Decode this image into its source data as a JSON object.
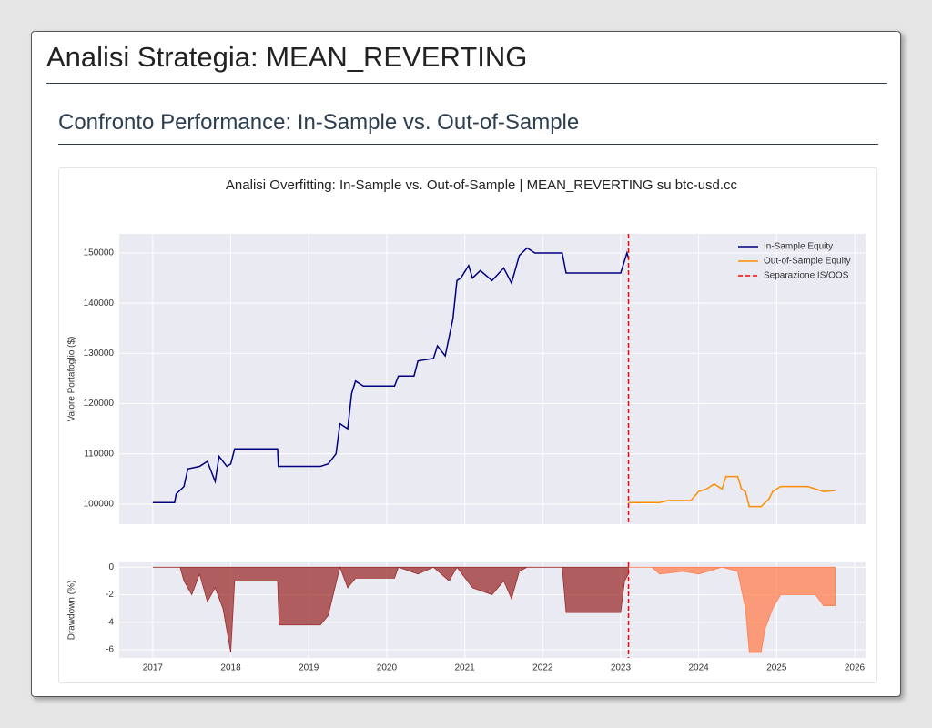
{
  "header": {
    "title": "Analisi Strategia: MEAN_REVERTING"
  },
  "section": {
    "title": "Confronto Performance: In-Sample vs. Out-of-Sample"
  },
  "chart_data": [
    {
      "type": "line",
      "title": "Analisi Overfitting: In-Sample vs. Out-of-Sample | MEAN_REVERTING su btc-usd.cc",
      "ylabel": "Valore Portafoglio ($)",
      "xlim": [
        2016.57,
        2026.14
      ],
      "xticks": [
        2017,
        2018,
        2019,
        2020,
        2021,
        2022,
        2023,
        2024,
        2025,
        2026
      ],
      "ylim": [
        96000,
        153800
      ],
      "yticks": [
        100000,
        110000,
        120000,
        130000,
        140000,
        150000
      ],
      "grid": true,
      "legend": "upper right",
      "series": [
        {
          "name": "In-Sample Equity",
          "color": "#000080",
          "x": [
            2017.0,
            2017.28,
            2017.3,
            2017.4,
            2017.45,
            2017.6,
            2017.7,
            2017.8,
            2017.85,
            2017.95,
            2018.0,
            2018.05,
            2018.6,
            2018.61,
            2019.15,
            2019.25,
            2019.35,
            2019.4,
            2019.5,
            2019.55,
            2019.6,
            2019.7,
            2020.1,
            2020.15,
            2020.35,
            2020.4,
            2020.6,
            2020.65,
            2020.75,
            2020.85,
            2020.9,
            2020.95,
            2021.05,
            2021.1,
            2021.2,
            2021.35,
            2021.5,
            2021.6,
            2021.7,
            2021.8,
            2021.9,
            2022.25,
            2022.3,
            2023.0,
            2023.05,
            2023.08,
            2023.1
          ],
          "values": [
            100300,
            100300,
            102000,
            103500,
            107000,
            107500,
            108500,
            104500,
            109500,
            107500,
            108000,
            111000,
            111000,
            107500,
            107500,
            108000,
            110000,
            116000,
            115000,
            122000,
            124500,
            123500,
            123500,
            125500,
            125500,
            128500,
            129000,
            131500,
            129500,
            137000,
            144500,
            145000,
            147500,
            145000,
            146500,
            144500,
            147000,
            144000,
            149500,
            151000,
            150000,
            150000,
            146000,
            146000,
            148500,
            150000,
            149000
          ]
        },
        {
          "name": "Out-of-Sample Equity",
          "color": "#ff8c00",
          "x": [
            2023.1,
            2023.5,
            2023.6,
            2023.9,
            2024.0,
            2024.1,
            2024.2,
            2024.3,
            2024.35,
            2024.5,
            2024.55,
            2024.6,
            2024.65,
            2024.8,
            2024.9,
            2024.95,
            2025.05,
            2025.4,
            2025.5,
            2025.6,
            2025.75
          ],
          "values": [
            100300,
            100300,
            100700,
            100700,
            102500,
            103000,
            104000,
            103000,
            105500,
            105500,
            103000,
            102500,
            99500,
            99500,
            101000,
            102500,
            103500,
            103500,
            103000,
            102500,
            102700
          ]
        }
      ],
      "vline": {
        "x": 2023.1,
        "name": "Separazione IS/OOS",
        "color": "#ff0000"
      }
    },
    {
      "type": "area",
      "ylabel": "Drawdown (%)",
      "xlim": [
        2016.57,
        2026.14
      ],
      "xticks": [
        2017,
        2018,
        2019,
        2020,
        2021,
        2022,
        2023,
        2024,
        2025,
        2026
      ],
      "ylim": [
        -6.6,
        0.35
      ],
      "yticks": [
        0,
        -2,
        -4,
        -6
      ],
      "grid": true,
      "series": [
        {
          "color": "#9b2d2d",
          "x": [
            2017.0,
            2017.35,
            2017.4,
            2017.5,
            2017.6,
            2017.7,
            2017.8,
            2017.9,
            2018.0,
            2018.05,
            2018.6,
            2018.62,
            2019.15,
            2019.25,
            2019.4,
            2019.5,
            2019.6,
            2020.1,
            2020.15,
            2020.4,
            2020.6,
            2020.8,
            2020.9,
            2021.1,
            2021.35,
            2021.5,
            2021.6,
            2021.7,
            2021.8,
            2022.25,
            2022.3,
            2023.0,
            2023.05,
            2023.1
          ],
          "values": [
            0,
            0,
            -1,
            -2,
            -0.5,
            -2.5,
            -1.5,
            -3,
            -6.2,
            -1,
            -1,
            -4.2,
            -4.2,
            -3.5,
            0,
            -1.5,
            -0.8,
            -0.8,
            0,
            -0.5,
            0,
            -1,
            0,
            -1.5,
            -2,
            -1,
            -2.3,
            -0.3,
            0,
            0,
            -3.3,
            -3.3,
            -1,
            -0.5
          ]
        },
        {
          "color": "#ff7f50",
          "x": [
            2023.1,
            2023.4,
            2023.5,
            2023.8,
            2024.0,
            2024.3,
            2024.5,
            2024.6,
            2024.65,
            2024.8,
            2024.85,
            2024.95,
            2025.05,
            2025.5,
            2025.6,
            2025.75
          ],
          "values": [
            0,
            0,
            -0.5,
            -0.3,
            -0.5,
            0,
            -0.3,
            -3,
            -6.2,
            -6.2,
            -4.5,
            -3,
            -2,
            -2,
            -2.8,
            -2.8
          ]
        }
      ],
      "vline": {
        "x": 2023.1,
        "color": "#ff0000"
      }
    }
  ]
}
